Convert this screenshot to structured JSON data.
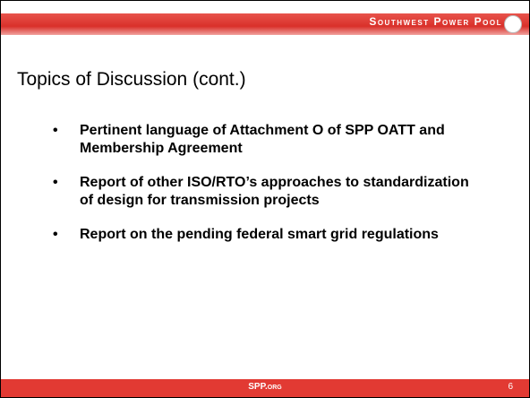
{
  "header": {
    "brand": "Southwest Power Pool"
  },
  "slide": {
    "title": "Topics of Discussion (cont.)",
    "bullets": [
      "Pertinent language of Attachment O of SPP OATT and Membership Agreement",
      "Report of other ISO/RTO’s approaches to standardization of design for transmission projects",
      "Report on the pending federal smart grid regulations"
    ]
  },
  "footer": {
    "site": "SPP.org",
    "page": "6"
  }
}
